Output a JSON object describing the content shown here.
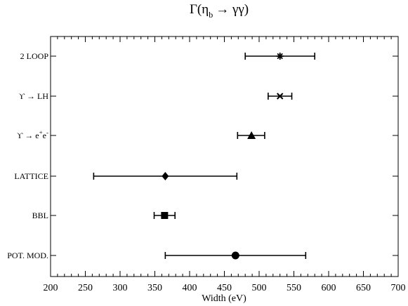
{
  "chart_data": {
    "type": "scatter",
    "title": "Γ(η_b → γγ)",
    "title_parts": {
      "pre": "Γ(η",
      "sub": "b",
      "post": "→ γγ)"
    },
    "xlabel": "Width (eV)",
    "ylabel": "",
    "xlim": [
      200,
      700
    ],
    "xticks": [
      200,
      250,
      300,
      350,
      400,
      450,
      500,
      550,
      600,
      650,
      700
    ],
    "grid": false,
    "categories": [
      "2 LOOP",
      "ϒ → LH",
      "ϒ → e+e-",
      "LATTICE",
      "BBL",
      "POT. MOD."
    ],
    "series": [
      {
        "points": [
          {
            "label": "2 LOOP",
            "value": 530,
            "low": 480,
            "high": 580,
            "marker": "asterisk"
          },
          {
            "label": "ϒ → LH",
            "value": 530,
            "low": 513,
            "high": 547,
            "marker": "cross"
          },
          {
            "label": "ϒ → e+e-",
            "value": 489,
            "low": 469,
            "high": 508,
            "marker": "triangle"
          },
          {
            "label": "LATTICE",
            "value": 365,
            "low": 262,
            "high": 468,
            "marker": "diamond"
          },
          {
            "label": "BBL",
            "value": 364,
            "low": 349,
            "high": 379,
            "marker": "square"
          },
          {
            "label": "POT. MOD.",
            "value": 466,
            "low": 365,
            "high": 567,
            "marker": "circle"
          }
        ]
      }
    ]
  }
}
